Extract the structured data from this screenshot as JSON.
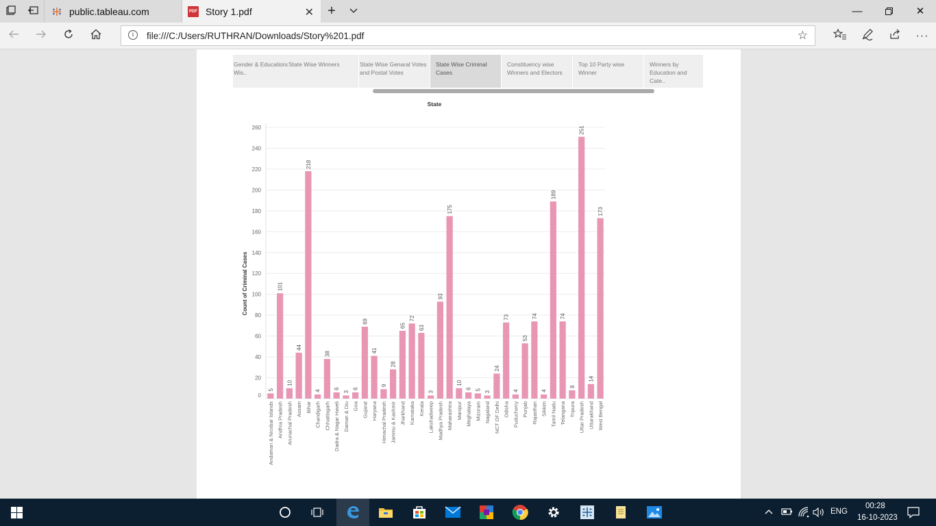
{
  "browser": {
    "tabs": [
      {
        "title": "public.tableau.com",
        "favicon": "tableau-icon"
      },
      {
        "title": "Story 1.pdf",
        "favicon": "pdf-icon"
      }
    ],
    "address": "file:///C:/Users/RUTHRAN/Downloads/Story%201.pdf",
    "pdf_favicon_text": "PDF"
  },
  "story": {
    "tabs": [
      {
        "label": "Gender & Educational Wis.."
      },
      {
        "label": "State Wise Winners"
      },
      {
        "label": "State Wise Genaral Votes and Postal Votes"
      },
      {
        "label": "State Wise Criminal Cases"
      },
      {
        "label": "Constituency wise Winners and Electors"
      },
      {
        "label": "Top 10 Party wise Winner"
      },
      {
        "label": "Winners by Education and Cate.."
      }
    ],
    "active_tab": 3
  },
  "chart_data": {
    "type": "bar",
    "title": "State",
    "xlabel": "",
    "ylabel": "Count of Criminal Cases",
    "ylim": [
      0,
      260
    ],
    "yticks": [
      0,
      20,
      40,
      60,
      80,
      100,
      120,
      140,
      160,
      180,
      200,
      220,
      240,
      260
    ],
    "bar_color": "#e896b4",
    "categories": [
      "Andaman & Nicobar Islands",
      "Andhra Pradesh",
      "Arunachal Pradesh",
      "Assam",
      "Bihar",
      "Chandigarh",
      "Chhattisgarh",
      "Dadra & Nagar Haveli",
      "Daman & Diu",
      "Goa",
      "Gujarat",
      "Haryana",
      "Himachal Pradesh",
      "Jammu & Kashmir",
      "Jharkhand",
      "Karnataka",
      "Kerala",
      "Lakshadweep",
      "Madhya Pradesh",
      "Maharashtra",
      "Manipur",
      "Meghalaya",
      "Mizoram",
      "Nagaland",
      "NCT OF Delhi",
      "Odisha",
      "Puducherry",
      "Punjab",
      "Rajasthan",
      "Sikkim",
      "Tamil Nadu",
      "Telangana",
      "Tripura",
      "Uttar Pradesh",
      "Uttarakhand",
      "West Bengal"
    ],
    "values": [
      5,
      101,
      10,
      44,
      218,
      4,
      38,
      6,
      3,
      6,
      69,
      41,
      9,
      28,
      65,
      72,
      63,
      3,
      93,
      175,
      10,
      6,
      5,
      3,
      24,
      73,
      4,
      53,
      74,
      4,
      189,
      74,
      8,
      251,
      14,
      173
    ]
  },
  "taskbar": {
    "language": "ENG",
    "time": "00:28",
    "date": "16-10-2023"
  }
}
